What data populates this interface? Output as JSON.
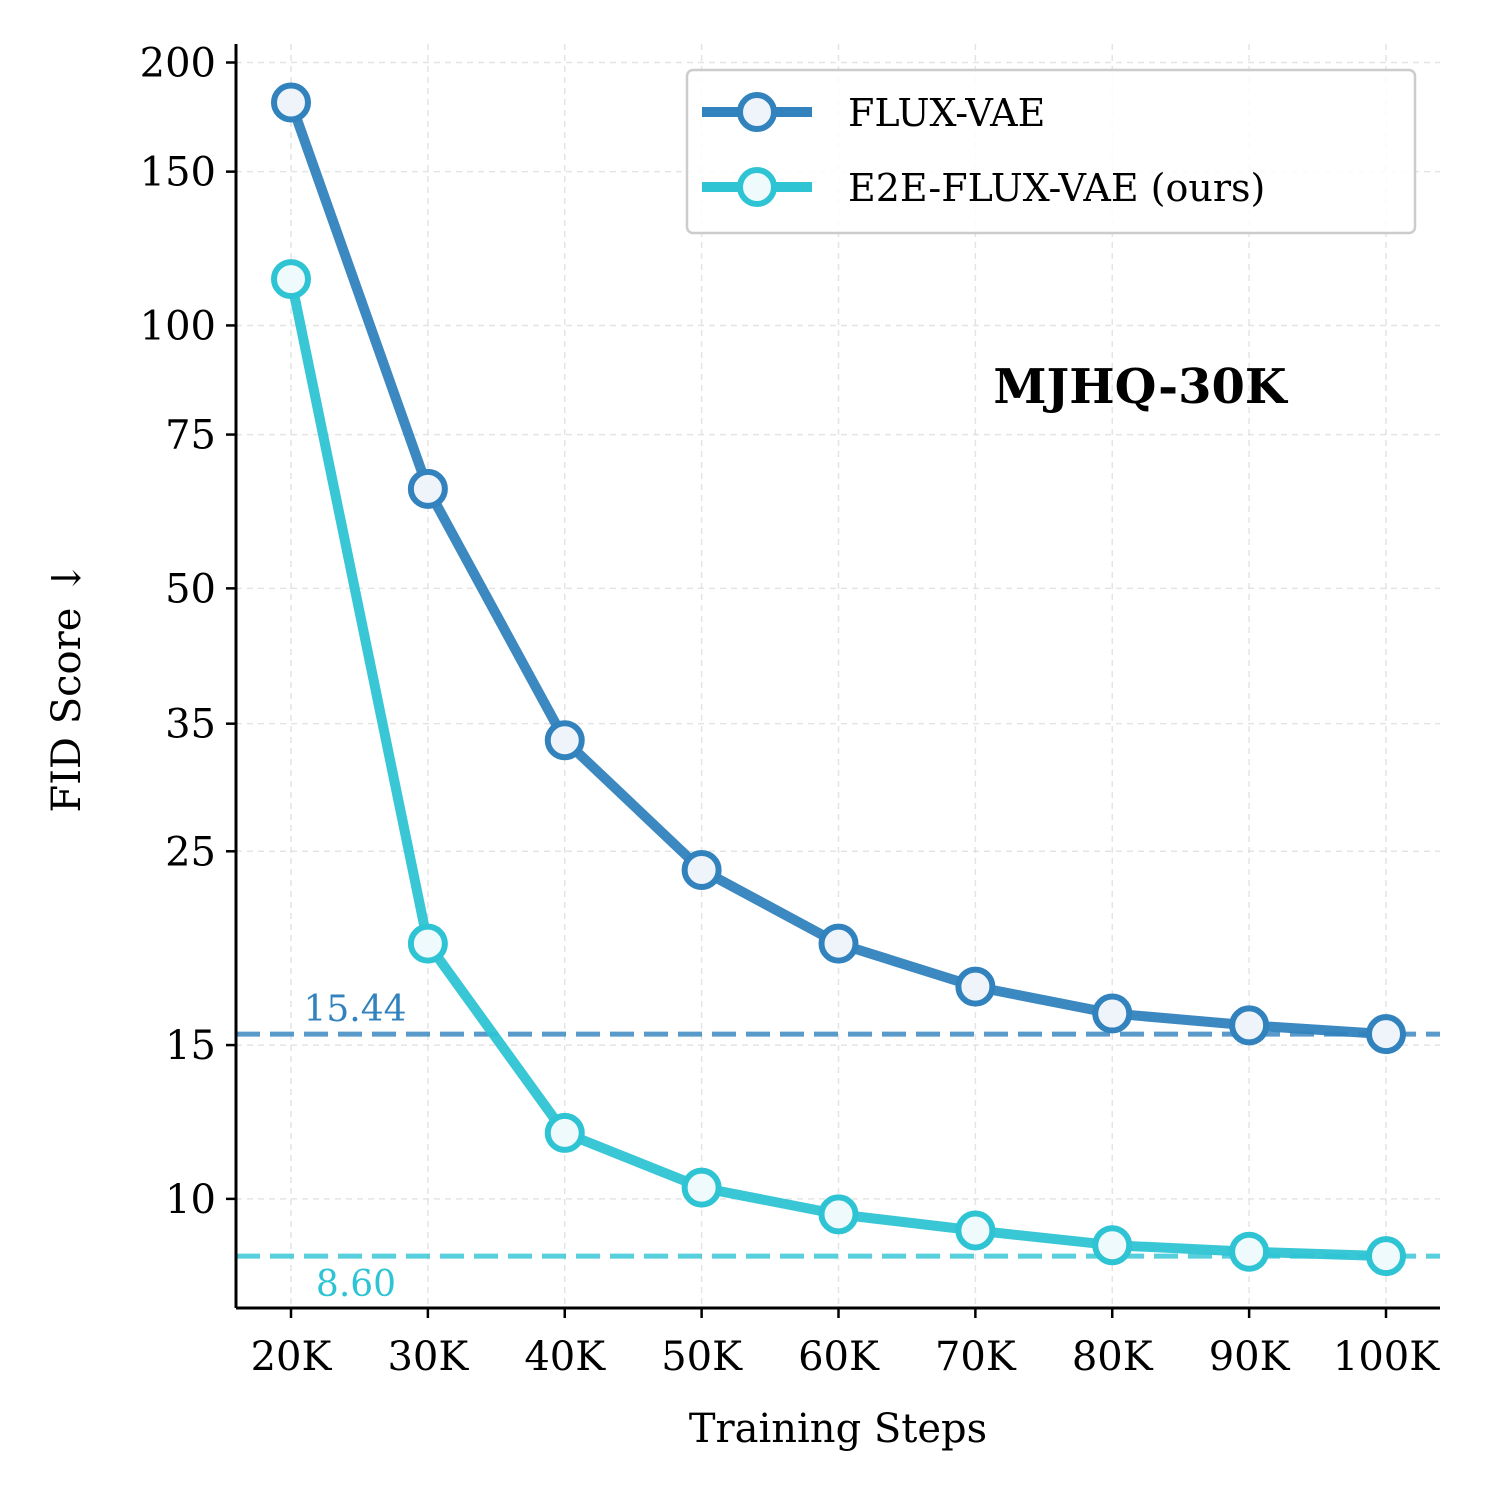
{
  "chart_data": {
    "type": "line",
    "xlabel": "Training Steps",
    "ylabel": "FID Score ↓",
    "annotation": "MJHQ-30K",
    "y_scale": "log",
    "ylim": [
      7.5,
      210
    ],
    "x_ticks": [
      "20K",
      "30K",
      "40K",
      "50K",
      "60K",
      "70K",
      "80K",
      "90K",
      "100K"
    ],
    "y_ticks": [
      10,
      15,
      25,
      35,
      50,
      75,
      100,
      150,
      200
    ],
    "y_tick_labels": [
      "10",
      "15",
      "25",
      "35",
      "50",
      "75",
      "100",
      "150",
      "200"
    ],
    "x": [
      20000,
      30000,
      40000,
      50000,
      60000,
      70000,
      80000,
      90000,
      100000
    ],
    "series": [
      {
        "name": "FLUX-VAE",
        "color": "#3182bd",
        "values": [
          180,
          65,
          33.5,
          23.8,
          19.6,
          17.5,
          16.3,
          15.8,
          15.44
        ]
      },
      {
        "name": "E2E-FLUX-VAE (ours)",
        "color": "#2ec4d4",
        "values": [
          113,
          19.6,
          11.9,
          10.3,
          9.6,
          9.2,
          8.85,
          8.7,
          8.6
        ]
      }
    ],
    "reference_lines": [
      {
        "value": 15.44,
        "label": "15.44",
        "color": "#3182bd"
      },
      {
        "value": 8.6,
        "label": "8.60",
        "color": "#2ec4d4"
      }
    ],
    "grid": true,
    "legend_position": "top-right"
  }
}
